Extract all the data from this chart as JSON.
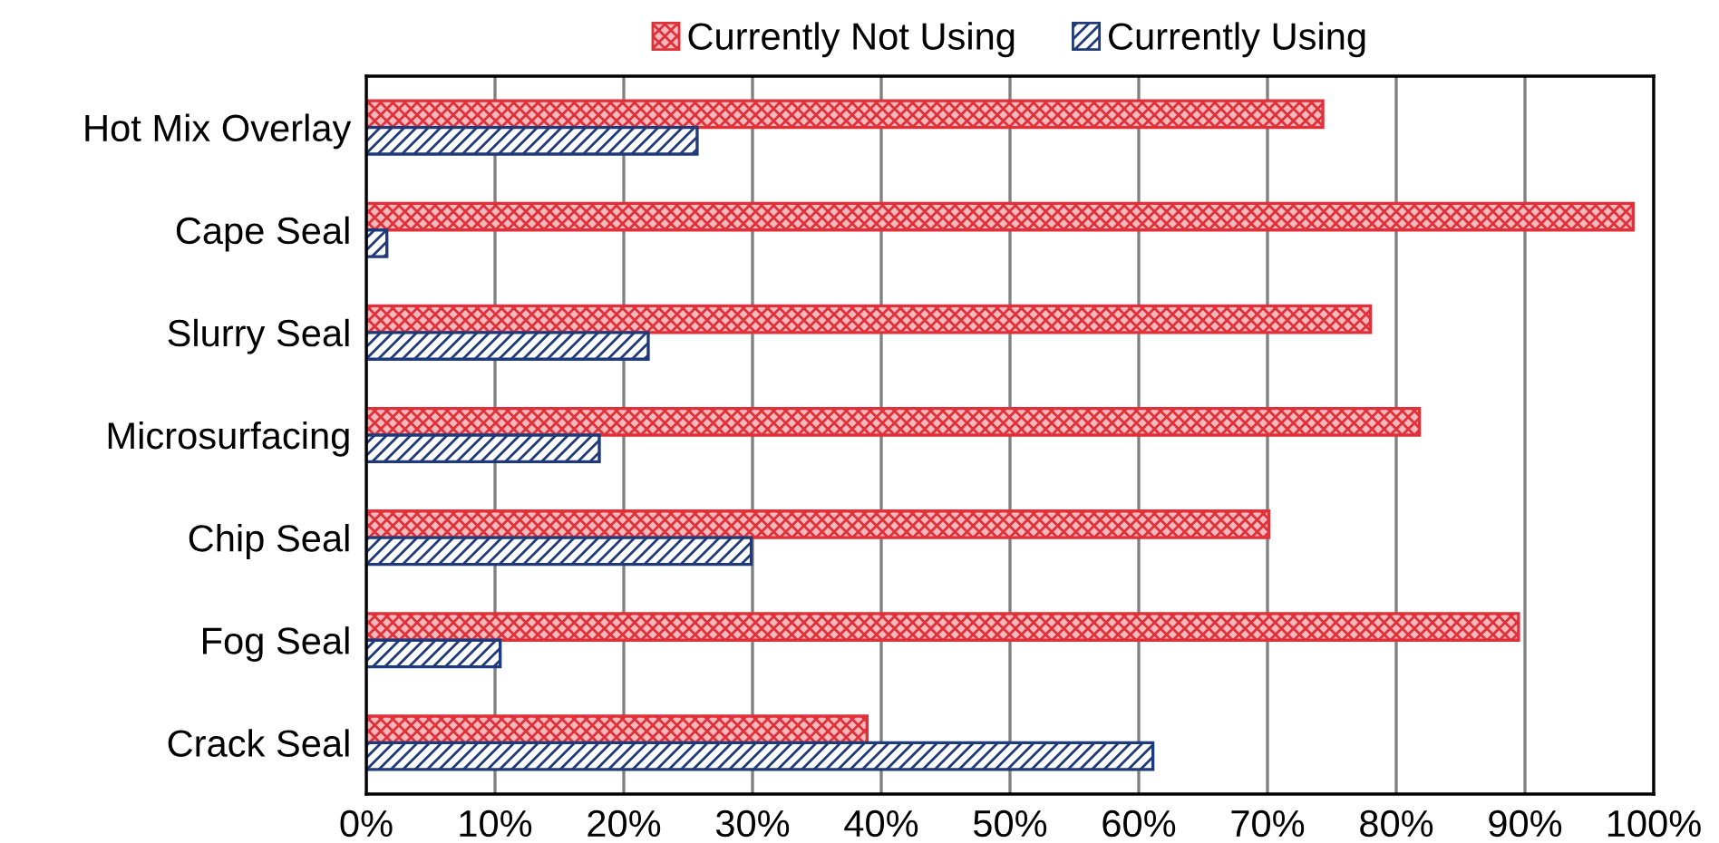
{
  "chart_data": {
    "type": "bar",
    "orientation": "horizontal",
    "categories": [
      "Hot Mix Overlay",
      "Cape Seal",
      "Slurry Seal",
      "Microsurfacing",
      "Chip Seal",
      "Fog Seal",
      "Crack Seal"
    ],
    "series": [
      {
        "name": "Currently Not Using",
        "color": "#e0303a",
        "values": [
          74.3,
          98.4,
          78.0,
          81.8,
          70.1,
          89.5,
          38.9
        ]
      },
      {
        "name": "Currently Using",
        "color": "#1f3a7a",
        "values": [
          25.7,
          1.6,
          21.9,
          18.1,
          29.9,
          10.4,
          61.1
        ]
      }
    ],
    "xlim": [
      0,
      100
    ],
    "xticks": [
      {
        "value": 0,
        "label": "0%"
      },
      {
        "value": 10,
        "label": "10%"
      },
      {
        "value": 20,
        "label": "20%"
      },
      {
        "value": 30,
        "label": "30%"
      },
      {
        "value": 40,
        "label": "40%"
      },
      {
        "value": 50,
        "label": "50%"
      },
      {
        "value": 60,
        "label": "60%"
      },
      {
        "value": 70,
        "label": "70%"
      },
      {
        "value": 80,
        "label": "80%"
      },
      {
        "value": 90,
        "label": "90%"
      },
      {
        "value": 100,
        "label": "100%"
      }
    ],
    "grid": "x",
    "legend": "top"
  }
}
